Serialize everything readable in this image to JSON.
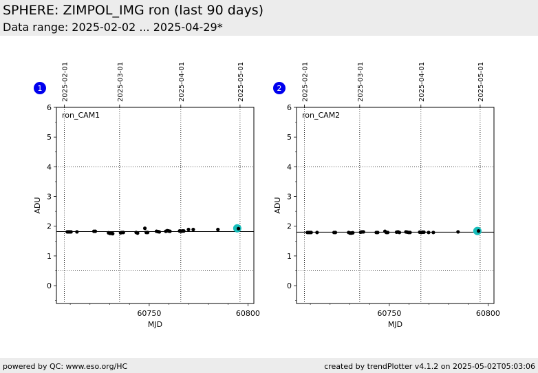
{
  "header": {
    "title": "SPHERE: ZIMPOL_IMG ron (last 90 days)",
    "subtitle": "Data range: 2025-02-02 ... 2025-04-29*"
  },
  "footer": {
    "left": "powered by QC: www.eso.org/HC",
    "right": "created by trendPlotter v4.1.2 on 2025-05-02T05:03:06"
  },
  "chart_data": [
    {
      "type": "scatter",
      "badge": "1",
      "label": "ron_CAM1",
      "xlabel": "MJD",
      "ylabel": "ADU",
      "xlim": [
        60703,
        60803
      ],
      "ylim": [
        -0.6,
        6
      ],
      "xticks": [
        60750,
        60800
      ],
      "yticks": [
        0,
        1,
        2,
        3,
        4,
        5,
        6
      ],
      "date_ticks": [
        {
          "mjd": 60707,
          "label": "2025-02-01"
        },
        {
          "mjd": 60735,
          "label": "2025-03-01"
        },
        {
          "mjd": 60766,
          "label": "2025-04-01"
        },
        {
          "mjd": 60796,
          "label": "2025-05-01"
        }
      ],
      "reference_line": 1.82,
      "dotted_levels": [
        4,
        0.5
      ],
      "grid": "dotted at date ticks",
      "highlight": {
        "x": 60794.6,
        "y": 1.93
      },
      "points": [
        {
          "x": 60708.5,
          "y": 1.81
        },
        {
          "x": 60709.2,
          "y": 1.81
        },
        {
          "x": 60709.8,
          "y": 1.81
        },
        {
          "x": 60710.4,
          "y": 1.81
        },
        {
          "x": 60713.4,
          "y": 1.81
        },
        {
          "x": 60722.0,
          "y": 1.83
        },
        {
          "x": 60722.7,
          "y": 1.83
        },
        {
          "x": 60729.4,
          "y": 1.78
        },
        {
          "x": 60730.1,
          "y": 1.76
        },
        {
          "x": 60730.8,
          "y": 1.76
        },
        {
          "x": 60731.5,
          "y": 1.75
        },
        {
          "x": 60735.5,
          "y": 1.78
        },
        {
          "x": 60736.2,
          "y": 1.79
        },
        {
          "x": 60736.9,
          "y": 1.79
        },
        {
          "x": 60743.4,
          "y": 1.79
        },
        {
          "x": 60744.1,
          "y": 1.77
        },
        {
          "x": 60747.8,
          "y": 1.93
        },
        {
          "x": 60748.5,
          "y": 1.79
        },
        {
          "x": 60749.2,
          "y": 1.79
        },
        {
          "x": 60753.7,
          "y": 1.83
        },
        {
          "x": 60754.4,
          "y": 1.82
        },
        {
          "x": 60755.1,
          "y": 1.81
        },
        {
          "x": 60758.4,
          "y": 1.83
        },
        {
          "x": 60759.1,
          "y": 1.85
        },
        {
          "x": 60759.8,
          "y": 1.84
        },
        {
          "x": 60760.5,
          "y": 1.83
        },
        {
          "x": 60765.4,
          "y": 1.84
        },
        {
          "x": 60766.1,
          "y": 1.83
        },
        {
          "x": 60766.8,
          "y": 1.84
        },
        {
          "x": 60767.5,
          "y": 1.84
        },
        {
          "x": 60769.9,
          "y": 1.89
        },
        {
          "x": 60772.3,
          "y": 1.89
        },
        {
          "x": 60784.8,
          "y": 1.89
        },
        {
          "x": 60795.2,
          "y": 1.92
        }
      ]
    },
    {
      "type": "scatter",
      "badge": "2",
      "label": "ron_CAM2",
      "xlabel": "MJD",
      "ylabel": "ADU",
      "xlim": [
        60703,
        60803
      ],
      "ylim": [
        -0.6,
        6
      ],
      "xticks": [
        60750,
        60800
      ],
      "yticks": [
        0,
        1,
        2,
        3,
        4,
        5,
        6
      ],
      "date_ticks": [
        {
          "mjd": 60707,
          "label": "2025-02-01"
        },
        {
          "mjd": 60735,
          "label": "2025-03-01"
        },
        {
          "mjd": 60766,
          "label": "2025-04-01"
        },
        {
          "mjd": 60796,
          "label": "2025-05-01"
        }
      ],
      "reference_line": 1.8,
      "dotted_levels": [
        4,
        0.5
      ],
      "grid": "dotted at date ticks",
      "highlight": {
        "x": 60794.6,
        "y": 1.84
      },
      "points": [
        {
          "x": 60708.5,
          "y": 1.79
        },
        {
          "x": 60709.2,
          "y": 1.79
        },
        {
          "x": 60709.8,
          "y": 1.79
        },
        {
          "x": 60710.4,
          "y": 1.79
        },
        {
          "x": 60713.4,
          "y": 1.79
        },
        {
          "x": 60722.0,
          "y": 1.79
        },
        {
          "x": 60722.7,
          "y": 1.79
        },
        {
          "x": 60729.4,
          "y": 1.79
        },
        {
          "x": 60730.1,
          "y": 1.77
        },
        {
          "x": 60730.8,
          "y": 1.77
        },
        {
          "x": 60731.5,
          "y": 1.78
        },
        {
          "x": 60735.5,
          "y": 1.8
        },
        {
          "x": 60736.2,
          "y": 1.81
        },
        {
          "x": 60736.9,
          "y": 1.81
        },
        {
          "x": 60743.4,
          "y": 1.79
        },
        {
          "x": 60744.1,
          "y": 1.79
        },
        {
          "x": 60747.8,
          "y": 1.83
        },
        {
          "x": 60748.5,
          "y": 1.79
        },
        {
          "x": 60749.2,
          "y": 1.79
        },
        {
          "x": 60753.7,
          "y": 1.8
        },
        {
          "x": 60754.4,
          "y": 1.81
        },
        {
          "x": 60755.1,
          "y": 1.79
        },
        {
          "x": 60758.4,
          "y": 1.81
        },
        {
          "x": 60759.1,
          "y": 1.8
        },
        {
          "x": 60759.8,
          "y": 1.79
        },
        {
          "x": 60760.5,
          "y": 1.79
        },
        {
          "x": 60765.4,
          "y": 1.8
        },
        {
          "x": 60766.1,
          "y": 1.79
        },
        {
          "x": 60766.8,
          "y": 1.8
        },
        {
          "x": 60767.5,
          "y": 1.8
        },
        {
          "x": 60769.9,
          "y": 1.79
        },
        {
          "x": 60772.3,
          "y": 1.79
        },
        {
          "x": 60784.8,
          "y": 1.81
        },
        {
          "x": 60795.2,
          "y": 1.84
        }
      ]
    }
  ]
}
